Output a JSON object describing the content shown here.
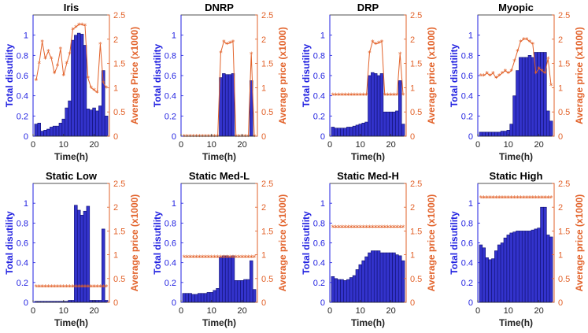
{
  "colors": {
    "bar": "#3333cc",
    "bar_edge": "#101070",
    "price": "#e2622a",
    "axis_left": "#1f1fe0",
    "axis_right": "#e2622a"
  },
  "chart_data": [
    {
      "type": "bar",
      "title": "Iris",
      "xlabel": "Time(h)",
      "ylabel_left": "Total disutility",
      "ylabel_right": "Average Price (x1000)",
      "xlim": [
        0,
        25
      ],
      "xticks": [
        0,
        10,
        20
      ],
      "ylim_left": [
        0,
        1.2
      ],
      "yticks_left": [
        0,
        0.2,
        0.4,
        0.6,
        0.8,
        1
      ],
      "ylim_right": [
        0,
        2.5
      ],
      "yticks_right": [
        0,
        0.5,
        1,
        1.5,
        2,
        2.5
      ],
      "x": [
        1,
        2,
        3,
        4,
        5,
        6,
        7,
        8,
        9,
        10,
        11,
        12,
        13,
        14,
        15,
        16,
        17,
        18,
        19,
        20,
        21,
        22,
        23,
        24
      ],
      "bars": [
        0.12,
        0.13,
        0.05,
        0.06,
        0.07,
        0.09,
        0.1,
        0.1,
        0.13,
        0.17,
        0.28,
        0.35,
        0.95,
        1.0,
        1.02,
        1.01,
        0.9,
        0.27,
        0.26,
        0.28,
        0.25,
        0.3,
        0.65,
        0.2
      ],
      "price": [
        1.15,
        1.5,
        1.95,
        1.6,
        1.75,
        1.6,
        1.3,
        1.45,
        1.8,
        1.25,
        1.5,
        1.7,
        2.2,
        2.25,
        2.3,
        2.3,
        2.28,
        1.2,
        1.0,
        0.95,
        0.9,
        1.9,
        1.1,
        1.0
      ]
    },
    {
      "type": "bar",
      "title": "DNRP",
      "xlabel": "Time(h)",
      "ylabel_left": "Total disutility",
      "ylabel_right": "Average price (x1000)",
      "xlim": [
        0,
        25
      ],
      "xticks": [
        0,
        10,
        20
      ],
      "ylim_left": [
        0,
        1.2
      ],
      "yticks_left": [
        0,
        0.2,
        0.4,
        0.6,
        0.8,
        1
      ],
      "ylim_right": [
        0,
        2.5
      ],
      "yticks_right": [
        0,
        0.5,
        1,
        1.5,
        2,
        2.5
      ],
      "x": [
        1,
        2,
        3,
        4,
        5,
        6,
        7,
        8,
        9,
        10,
        11,
        12,
        13,
        14,
        15,
        16,
        17,
        18,
        19,
        20,
        21,
        22,
        23,
        24
      ],
      "bars": [
        0,
        0,
        0,
        0,
        0,
        0,
        0,
        0,
        0,
        0,
        0,
        0,
        0.58,
        0.62,
        0.61,
        0.61,
        0.62,
        0,
        0,
        0,
        0,
        0,
        0.55,
        0
      ],
      "price": [
        0,
        0,
        0,
        0,
        0,
        0,
        0,
        0,
        0,
        0,
        0,
        0,
        1.72,
        1.95,
        1.9,
        1.92,
        1.95,
        0,
        0,
        0,
        0,
        0,
        1.7,
        0
      ]
    },
    {
      "type": "bar",
      "title": "DRP",
      "xlabel": "Time(h)",
      "ylabel_left": "Total disutility",
      "ylabel_right": "Average price (x1000)",
      "xlim": [
        0,
        25
      ],
      "xticks": [
        0,
        10,
        20
      ],
      "ylim_left": [
        0,
        1.2
      ],
      "yticks_left": [
        0,
        0.2,
        0.4,
        0.6,
        0.8,
        1
      ],
      "ylim_right": [
        0,
        2.5
      ],
      "yticks_right": [
        0,
        0.5,
        1,
        1.5,
        2,
        2.5
      ],
      "x": [
        1,
        2,
        3,
        4,
        5,
        6,
        7,
        8,
        9,
        10,
        11,
        12,
        13,
        14,
        15,
        16,
        17,
        18,
        19,
        20,
        21,
        22,
        23,
        24
      ],
      "bars": [
        0.09,
        0.08,
        0.08,
        0.08,
        0.08,
        0.09,
        0.09,
        0.1,
        0.11,
        0.12,
        0.13,
        0.14,
        0.6,
        0.63,
        0.62,
        0.6,
        0.62,
        0.24,
        0.24,
        0.24,
        0.24,
        0.25,
        0.55,
        0.12
      ],
      "price": [
        0.85,
        0.85,
        0.85,
        0.85,
        0.85,
        0.85,
        0.85,
        0.85,
        0.85,
        0.85,
        0.85,
        0.85,
        1.72,
        1.95,
        1.9,
        1.92,
        1.95,
        0.85,
        0.85,
        0.85,
        0.85,
        0.85,
        1.7,
        0.85
      ]
    },
    {
      "type": "bar",
      "title": "Myopic",
      "xlabel": "Time(h)",
      "ylabel_left": "Total disutility",
      "ylabel_right": "Average price (x1000)",
      "xlim": [
        0,
        25
      ],
      "xticks": [
        0,
        10,
        20
      ],
      "ylim_left": [
        0,
        1.2
      ],
      "yticks_left": [
        0,
        0.2,
        0.4,
        0.6,
        0.8,
        1
      ],
      "ylim_right": [
        0,
        2.5
      ],
      "yticks_right": [
        0,
        0.5,
        1,
        1.5,
        2,
        2.5
      ],
      "x": [
        1,
        2,
        3,
        4,
        5,
        6,
        7,
        8,
        9,
        10,
        11,
        12,
        13,
        14,
        15,
        16,
        17,
        18,
        19,
        20,
        21,
        22,
        23,
        24
      ],
      "bars": [
        0.04,
        0.04,
        0.04,
        0.04,
        0.04,
        0.04,
        0.04,
        0.05,
        0.05,
        0.06,
        0.12,
        0.4,
        0.65,
        0.78,
        0.78,
        0.78,
        0.8,
        0.78,
        0.83,
        0.83,
        0.83,
        0.83,
        0.25,
        0.15
      ],
      "price": [
        1.25,
        1.25,
        1.3,
        1.25,
        1.3,
        1.2,
        1.25,
        1.3,
        1.35,
        1.3,
        1.35,
        1.55,
        1.75,
        1.95,
        2.0,
        2.0,
        1.95,
        1.9,
        1.3,
        1.4,
        1.35,
        1.3,
        1.6,
        1.05
      ]
    },
    {
      "type": "bar",
      "title": "Static Low",
      "xlabel": "Time(h)",
      "ylabel_left": "Total disutility",
      "ylabel_right": "Average price (x1000)",
      "xlim": [
        0,
        25
      ],
      "xticks": [
        0,
        10,
        20
      ],
      "ylim_left": [
        0,
        1.2
      ],
      "yticks_left": [
        0,
        0.2,
        0.4,
        0.6,
        0.8,
        1
      ],
      "ylim_right": [
        0,
        2.5
      ],
      "yticks_right": [
        0,
        0.5,
        1,
        1.5,
        2,
        2.5
      ],
      "x": [
        1,
        2,
        3,
        4,
        5,
        6,
        7,
        8,
        9,
        10,
        11,
        12,
        13,
        14,
        15,
        16,
        17,
        18,
        19,
        20,
        21,
        22,
        23,
        24
      ],
      "bars": [
        0.01,
        0.01,
        0.01,
        0.01,
        0.01,
        0.01,
        0.01,
        0.01,
        0.01,
        0.01,
        0.01,
        0.02,
        0.02,
        0.98,
        0.93,
        0.88,
        0.92,
        0.97,
        0.02,
        0.02,
        0.02,
        0.02,
        0.74,
        0.02
      ],
      "price": [
        0.33,
        0.33,
        0.33,
        0.33,
        0.33,
        0.33,
        0.33,
        0.33,
        0.33,
        0.33,
        0.33,
        0.33,
        0.33,
        0.33,
        0.33,
        0.33,
        0.33,
        0.33,
        0.33,
        0.33,
        0.33,
        0.33,
        0.33,
        0.33
      ]
    },
    {
      "type": "bar",
      "title": "Static Med-L",
      "xlabel": "Time(h)",
      "ylabel_left": "Total disutility",
      "ylabel_right": "Average price (x1000)",
      "xlim": [
        0,
        25
      ],
      "xticks": [
        0,
        10,
        20
      ],
      "ylim_left": [
        0,
        1.2
      ],
      "yticks_left": [
        0,
        0.2,
        0.4,
        0.6,
        0.8,
        1
      ],
      "ylim_right": [
        0,
        2.5
      ],
      "yticks_right": [
        0,
        0.5,
        1,
        1.5,
        2,
        2.5
      ],
      "x": [
        1,
        2,
        3,
        4,
        5,
        6,
        7,
        8,
        9,
        10,
        11,
        12,
        13,
        14,
        15,
        16,
        17,
        18,
        19,
        20,
        21,
        22,
        23,
        24
      ],
      "bars": [
        0.09,
        0.09,
        0.09,
        0.08,
        0.08,
        0.09,
        0.09,
        0.09,
        0.1,
        0.1,
        0.12,
        0.14,
        0.46,
        0.47,
        0.47,
        0.46,
        0.47,
        0.22,
        0.22,
        0.22,
        0.23,
        0.23,
        0.42,
        0.13
      ],
      "price": [
        0.95,
        0.95,
        0.95,
        0.95,
        0.95,
        0.95,
        0.95,
        0.95,
        0.95,
        0.95,
        0.95,
        0.95,
        0.95,
        0.95,
        0.95,
        0.95,
        0.95,
        0.95,
        0.95,
        0.95,
        0.95,
        0.95,
        0.95,
        0.95
      ]
    },
    {
      "type": "bar",
      "title": "Static Med-H",
      "xlabel": "Time(h)",
      "ylabel_left": "Total disutility",
      "ylabel_right": "Average price (x1000)",
      "xlim": [
        0,
        25
      ],
      "xticks": [
        0,
        10,
        20
      ],
      "ylim_left": [
        0,
        1.2
      ],
      "yticks_left": [
        0,
        0.2,
        0.4,
        0.6,
        0.8,
        1
      ],
      "ylim_right": [
        0,
        2.5
      ],
      "yticks_right": [
        0,
        0.5,
        1,
        1.5,
        2,
        2.5
      ],
      "x": [
        1,
        2,
        3,
        4,
        5,
        6,
        7,
        8,
        9,
        10,
        11,
        12,
        13,
        14,
        15,
        16,
        17,
        18,
        19,
        20,
        21,
        22,
        23,
        24
      ],
      "bars": [
        0.26,
        0.24,
        0.23,
        0.23,
        0.22,
        0.23,
        0.25,
        0.27,
        0.33,
        0.38,
        0.42,
        0.46,
        0.5,
        0.52,
        0.52,
        0.52,
        0.5,
        0.5,
        0.5,
        0.5,
        0.5,
        0.48,
        0.47,
        0.42
      ],
      "price": [
        1.58,
        1.58,
        1.58,
        1.58,
        1.58,
        1.58,
        1.58,
        1.58,
        1.58,
        1.58,
        1.58,
        1.58,
        1.58,
        1.58,
        1.58,
        1.58,
        1.58,
        1.58,
        1.58,
        1.58,
        1.58,
        1.58,
        1.58,
        1.58
      ]
    },
    {
      "type": "bar",
      "title": "Static High",
      "xlabel": "Time(h)",
      "ylabel_left": "Total disutility",
      "ylabel_right": "Average price (x1000)",
      "xlim": [
        0,
        25
      ],
      "xticks": [
        0,
        10,
        20
      ],
      "ylim_left": [
        0,
        1.2
      ],
      "yticks_left": [
        0,
        0.2,
        0.4,
        0.6,
        0.8,
        1
      ],
      "ylim_right": [
        0,
        2.5
      ],
      "yticks_right": [
        0,
        0.5,
        1,
        1.5,
        2,
        2.5
      ],
      "x": [
        1,
        2,
        3,
        4,
        5,
        6,
        7,
        8,
        9,
        10,
        11,
        12,
        13,
        14,
        15,
        16,
        17,
        18,
        19,
        20,
        21,
        22,
        23,
        24
      ],
      "bars": [
        0.58,
        0.55,
        0.45,
        0.43,
        0.44,
        0.52,
        0.58,
        0.6,
        0.65,
        0.68,
        0.7,
        0.71,
        0.72,
        0.72,
        0.72,
        0.72,
        0.72,
        0.73,
        0.74,
        0.75,
        0.96,
        0.96,
        0.68,
        0.66
      ],
      "price": [
        2.2,
        2.2,
        2.2,
        2.2,
        2.2,
        2.2,
        2.2,
        2.2,
        2.2,
        2.2,
        2.2,
        2.2,
        2.2,
        2.2,
        2.2,
        2.2,
        2.2,
        2.2,
        2.2,
        2.2,
        2.2,
        2.2,
        2.2,
        2.2
      ]
    }
  ]
}
